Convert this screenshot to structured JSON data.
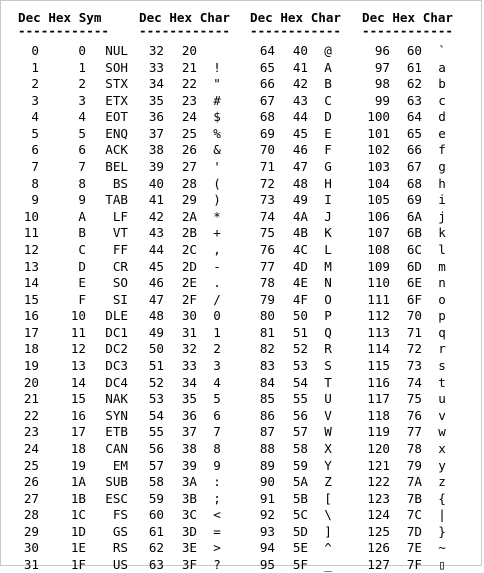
{
  "headers": [
    {
      "dec": "Dec",
      "hex": "Hex",
      "third": "Sym"
    },
    {
      "dec": "Dec",
      "hex": "Hex",
      "third": "Char"
    },
    {
      "dec": "Dec",
      "hex": "Hex",
      "third": "Char"
    },
    {
      "dec": "Dec",
      "hex": "Hex",
      "third": "Char"
    }
  ],
  "separator": "------------",
  "columns": [
    [
      [
        "0",
        "0",
        "NUL"
      ],
      [
        "1",
        "1",
        "SOH"
      ],
      [
        "2",
        "2",
        "STX"
      ],
      [
        "3",
        "3",
        "ETX"
      ],
      [
        "4",
        "4",
        "EOT"
      ],
      [
        "5",
        "5",
        "ENQ"
      ],
      [
        "6",
        "6",
        "ACK"
      ],
      [
        "7",
        "7",
        "BEL"
      ],
      [
        "8",
        "8",
        "BS"
      ],
      [
        "9",
        "9",
        "TAB"
      ],
      [
        "10",
        "A",
        "LF"
      ],
      [
        "11",
        "B",
        "VT"
      ],
      [
        "12",
        "C",
        "FF"
      ],
      [
        "13",
        "D",
        "CR"
      ],
      [
        "14",
        "E",
        "SO"
      ],
      [
        "15",
        "F",
        "SI"
      ],
      [
        "16",
        "10",
        "DLE"
      ],
      [
        "17",
        "11",
        "DC1"
      ],
      [
        "18",
        "12",
        "DC2"
      ],
      [
        "19",
        "13",
        "DC3"
      ],
      [
        "20",
        "14",
        "DC4"
      ],
      [
        "21",
        "15",
        "NAK"
      ],
      [
        "22",
        "16",
        "SYN"
      ],
      [
        "23",
        "17",
        "ETB"
      ],
      [
        "24",
        "18",
        "CAN"
      ],
      [
        "25",
        "19",
        "EM"
      ],
      [
        "26",
        "1A",
        "SUB"
      ],
      [
        "27",
        "1B",
        "ESC"
      ],
      [
        "28",
        "1C",
        "FS"
      ],
      [
        "29",
        "1D",
        "GS"
      ],
      [
        "30",
        "1E",
        "RS"
      ],
      [
        "31",
        "1F",
        "US"
      ]
    ],
    [
      [
        "32",
        "20",
        ""
      ],
      [
        "33",
        "21",
        "!"
      ],
      [
        "34",
        "22",
        "\""
      ],
      [
        "35",
        "23",
        "#"
      ],
      [
        "36",
        "24",
        "$"
      ],
      [
        "37",
        "25",
        "%"
      ],
      [
        "38",
        "26",
        "&"
      ],
      [
        "39",
        "27",
        "'"
      ],
      [
        "40",
        "28",
        "("
      ],
      [
        "41",
        "29",
        ")"
      ],
      [
        "42",
        "2A",
        "*"
      ],
      [
        "43",
        "2B",
        "+"
      ],
      [
        "44",
        "2C",
        ","
      ],
      [
        "45",
        "2D",
        "-"
      ],
      [
        "46",
        "2E",
        "."
      ],
      [
        "47",
        "2F",
        "/"
      ],
      [
        "48",
        "30",
        "0"
      ],
      [
        "49",
        "31",
        "1"
      ],
      [
        "50",
        "32",
        "2"
      ],
      [
        "51",
        "33",
        "3"
      ],
      [
        "52",
        "34",
        "4"
      ],
      [
        "53",
        "35",
        "5"
      ],
      [
        "54",
        "36",
        "6"
      ],
      [
        "55",
        "37",
        "7"
      ],
      [
        "56",
        "38",
        "8"
      ],
      [
        "57",
        "39",
        "9"
      ],
      [
        "58",
        "3A",
        ":"
      ],
      [
        "59",
        "3B",
        ";"
      ],
      [
        "60",
        "3C",
        "<"
      ],
      [
        "61",
        "3D",
        "="
      ],
      [
        "62",
        "3E",
        ">"
      ],
      [
        "63",
        "3F",
        "?"
      ]
    ],
    [
      [
        "64",
        "40",
        "@"
      ],
      [
        "65",
        "41",
        "A"
      ],
      [
        "66",
        "42",
        "B"
      ],
      [
        "67",
        "43",
        "C"
      ],
      [
        "68",
        "44",
        "D"
      ],
      [
        "69",
        "45",
        "E"
      ],
      [
        "70",
        "46",
        "F"
      ],
      [
        "71",
        "47",
        "G"
      ],
      [
        "72",
        "48",
        "H"
      ],
      [
        "73",
        "49",
        "I"
      ],
      [
        "74",
        "4A",
        "J"
      ],
      [
        "75",
        "4B",
        "K"
      ],
      [
        "76",
        "4C",
        "L"
      ],
      [
        "77",
        "4D",
        "M"
      ],
      [
        "78",
        "4E",
        "N"
      ],
      [
        "79",
        "4F",
        "O"
      ],
      [
        "80",
        "50",
        "P"
      ],
      [
        "81",
        "51",
        "Q"
      ],
      [
        "82",
        "52",
        "R"
      ],
      [
        "83",
        "53",
        "S"
      ],
      [
        "84",
        "54",
        "T"
      ],
      [
        "85",
        "55",
        "U"
      ],
      [
        "86",
        "56",
        "V"
      ],
      [
        "87",
        "57",
        "W"
      ],
      [
        "88",
        "58",
        "X"
      ],
      [
        "89",
        "59",
        "Y"
      ],
      [
        "90",
        "5A",
        "Z"
      ],
      [
        "91",
        "5B",
        "["
      ],
      [
        "92",
        "5C",
        "\\"
      ],
      [
        "93",
        "5D",
        "]"
      ],
      [
        "94",
        "5E",
        "^"
      ],
      [
        "95",
        "5F",
        "_"
      ]
    ],
    [
      [
        "96",
        "60",
        "`"
      ],
      [
        "97",
        "61",
        "a"
      ],
      [
        "98",
        "62",
        "b"
      ],
      [
        "99",
        "63",
        "c"
      ],
      [
        "100",
        "64",
        "d"
      ],
      [
        "101",
        "65",
        "e"
      ],
      [
        "102",
        "66",
        "f"
      ],
      [
        "103",
        "67",
        "g"
      ],
      [
        "104",
        "68",
        "h"
      ],
      [
        "105",
        "69",
        "i"
      ],
      [
        "106",
        "6A",
        "j"
      ],
      [
        "107",
        "6B",
        "k"
      ],
      [
        "108",
        "6C",
        "l"
      ],
      [
        "109",
        "6D",
        "m"
      ],
      [
        "110",
        "6E",
        "n"
      ],
      [
        "111",
        "6F",
        "o"
      ],
      [
        "112",
        "70",
        "p"
      ],
      [
        "113",
        "71",
        "q"
      ],
      [
        "114",
        "72",
        "r"
      ],
      [
        "115",
        "73",
        "s"
      ],
      [
        "116",
        "74",
        "t"
      ],
      [
        "117",
        "75",
        "u"
      ],
      [
        "118",
        "76",
        "v"
      ],
      [
        "119",
        "77",
        "w"
      ],
      [
        "120",
        "78",
        "x"
      ],
      [
        "121",
        "79",
        "y"
      ],
      [
        "122",
        "7A",
        "z"
      ],
      [
        "123",
        "7B",
        "{"
      ],
      [
        "124",
        "7C",
        "|"
      ],
      [
        "125",
        "7D",
        "}"
      ],
      [
        "126",
        "7E",
        "~"
      ],
      [
        "127",
        "7F",
        "▯"
      ]
    ]
  ]
}
